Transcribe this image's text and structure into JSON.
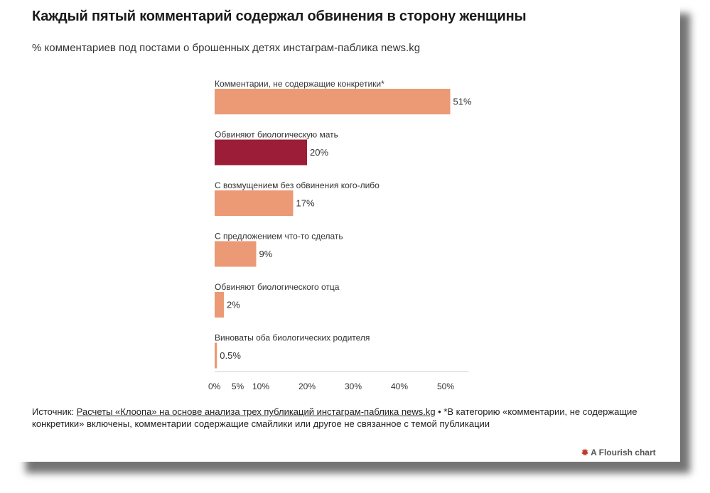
{
  "header": {
    "title": "Каждый пятый комментарий содержал обвинения в сторону женщины",
    "subtitle": "% комментариев под постами о брошенных детях инстаграм-паблика news.kg"
  },
  "chart_data": {
    "type": "bar",
    "orientation": "horizontal",
    "categories": [
      "Комментарии, не содержащие конкретики*",
      "Обвиняют биологическую мать",
      "С возмущением без обвинения кого-либо",
      "С предложением что-то сделать",
      "Обвиняют биологического отца",
      "Виноваты оба биологических родителя"
    ],
    "values": [
      51,
      20,
      17,
      9,
      2,
      0.5
    ],
    "value_labels": [
      "51%",
      "20%",
      "17%",
      "9%",
      "2%",
      "0.5%"
    ],
    "colors": [
      "#eb9a75",
      "#9b1d37",
      "#eb9a75",
      "#eb9a75",
      "#eb9a75",
      "#eb9a75"
    ],
    "x_ticks": [
      {
        "value": 0,
        "label": "0%"
      },
      {
        "value": 5,
        "label": "5%"
      },
      {
        "value": 10,
        "label": "10%"
      },
      {
        "value": 20,
        "label": "20%"
      },
      {
        "value": 30,
        "label": "30%"
      },
      {
        "value": 40,
        "label": "40%"
      },
      {
        "value": 50,
        "label": "50%"
      }
    ],
    "xlim": [
      0,
      55
    ],
    "grid": false,
    "legend": "none"
  },
  "footer": {
    "source_prefix": "Источник: ",
    "source_link": "Расчеты «Клоопа» на основе анализа трех публикаций инстаграм-паблика news.kg",
    "note": " • *В категорию «комментарии, не содержащие конкретики» включены, комментарии содержащие смайлики или другое не связанное с темой публикации"
  },
  "branding": {
    "label": "A Flourish chart",
    "icon": "flourish-logo-icon",
    "icon_color": "#c0392b"
  }
}
